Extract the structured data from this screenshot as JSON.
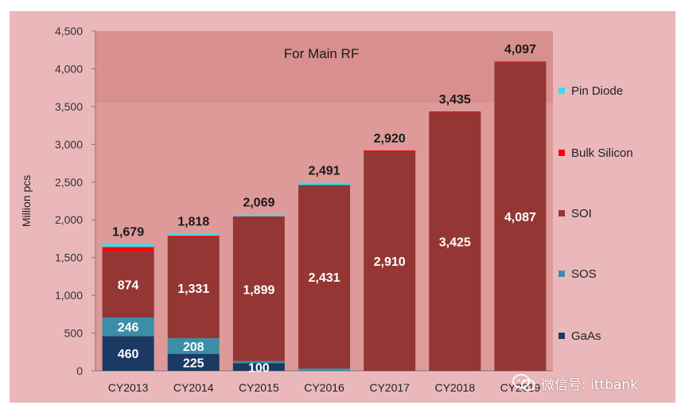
{
  "chart_data": {
    "type": "bar",
    "stacked": true,
    "title": "For Main RF",
    "ylabel": "Million pcs",
    "xlabel": "",
    "ylim": [
      0,
      4500
    ],
    "yticks": [
      "0",
      "500",
      "1,000",
      "1,500",
      "2,000",
      "2,500",
      "3,000",
      "3,500",
      "4,000",
      "4,500"
    ],
    "categories": [
      "CY2013",
      "CY2014",
      "CY2015",
      "CY2016",
      "CY2017",
      "CY2018",
      "CY2019"
    ],
    "series": [
      {
        "name": "GaAs",
        "color": "#1b3a63",
        "values": [
          460,
          225,
          100,
          0,
          0,
          0,
          0
        ],
        "labels": [
          "460",
          "225",
          "100",
          "",
          "",
          "",
          ""
        ]
      },
      {
        "name": "SOS",
        "color": "#3a8ea6",
        "values": [
          246,
          208,
          30,
          30,
          0,
          0,
          0
        ],
        "labels": [
          "246",
          "208",
          "",
          "",
          "",
          "",
          ""
        ]
      },
      {
        "name": "SOI",
        "color": "#943634",
        "values": [
          874,
          1331,
          1899,
          2431,
          2910,
          3425,
          4087
        ],
        "labels": [
          "874",
          "1,331",
          "1,899",
          "2,431",
          "2,910",
          "3,425",
          "4,087"
        ]
      },
      {
        "name": "Bulk Silicon",
        "color": "#ff0000",
        "values": [
          60,
          25,
          15,
          0,
          10,
          10,
          10
        ],
        "labels": [
          "",
          "",
          "",
          "",
          "",
          "",
          ""
        ]
      },
      {
        "name": "Pin Diode",
        "color": "#33e0f0",
        "values": [
          39,
          29,
          25,
          30,
          0,
          0,
          0
        ],
        "labels": [
          "",
          "",
          "",
          "",
          "",
          "",
          ""
        ]
      }
    ],
    "totals": [
      "1,679",
      "1,818",
      "2,069",
      "2,491",
      "2,920",
      "3,435",
      "4,097"
    ],
    "total_values": [
      1679,
      1818,
      2069,
      2491,
      2920,
      3435,
      4097
    ],
    "legend_order": [
      "Pin Diode",
      "Bulk Silicon",
      "SOI",
      "SOS",
      "GaAs"
    ],
    "legend_position": "right",
    "grid": false,
    "colors": {
      "frame": "#eab8bb",
      "plot_area": "#dd9a98",
      "highlight": "#cc7d7b"
    }
  },
  "watermark": {
    "text": "微信号: ittbank",
    "icon": "wechat-icon"
  }
}
